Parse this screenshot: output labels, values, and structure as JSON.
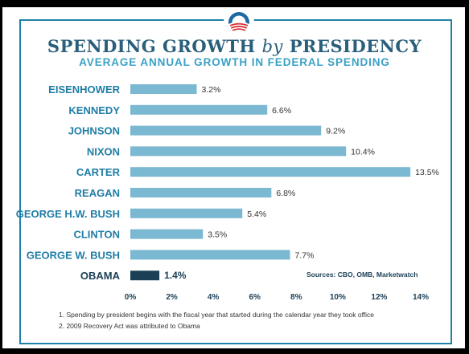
{
  "title_main": "SPENDING GROWTH",
  "title_by": "by",
  "title_end": "PRESIDENCY",
  "subtitle": "AVERAGE ANNUAL GROWTH IN FEDERAL SPENDING",
  "sources": "Sources: CBO, OMB, Marketwatch",
  "notes": [
    "1. Spending by president begins with the fiscal year that started during the calendar year they took office",
    "2. 2009 Recovery Act was attributed to Obama"
  ],
  "colors": {
    "bar": "#7bb8d1",
    "highlight_bar": "#1b3f55",
    "border": "#1d82a8",
    "title": "#2a5f7a",
    "subtitle": "#3aa1c4"
  },
  "chart_data": {
    "type": "bar",
    "orientation": "horizontal",
    "title": "SPENDING GROWTH by PRESIDENCY",
    "subtitle": "AVERAGE ANNUAL GROWTH IN FEDERAL SPENDING",
    "categories": [
      "EISENHOWER",
      "KENNEDY",
      "JOHNSON",
      "NIXON",
      "CARTER",
      "REAGAN",
      "GEORGE H.W. BUSH",
      "CLINTON",
      "GEORGE W. BUSH",
      "OBAMA"
    ],
    "values": [
      3.2,
      6.6,
      9.2,
      10.4,
      13.5,
      6.8,
      5.4,
      3.5,
      7.7,
      1.4
    ],
    "value_labels": [
      "3.2%",
      "6.6%",
      "9.2%",
      "10.4%",
      "13.5%",
      "6.8%",
      "5.4%",
      "3.5%",
      "7.7%",
      "1.4%"
    ],
    "highlight": "OBAMA",
    "xlim": [
      0,
      14
    ],
    "xticks": [
      "0%",
      "2%",
      "4%",
      "6%",
      "8%",
      "10%",
      "12%",
      "14%"
    ],
    "grid": false
  }
}
